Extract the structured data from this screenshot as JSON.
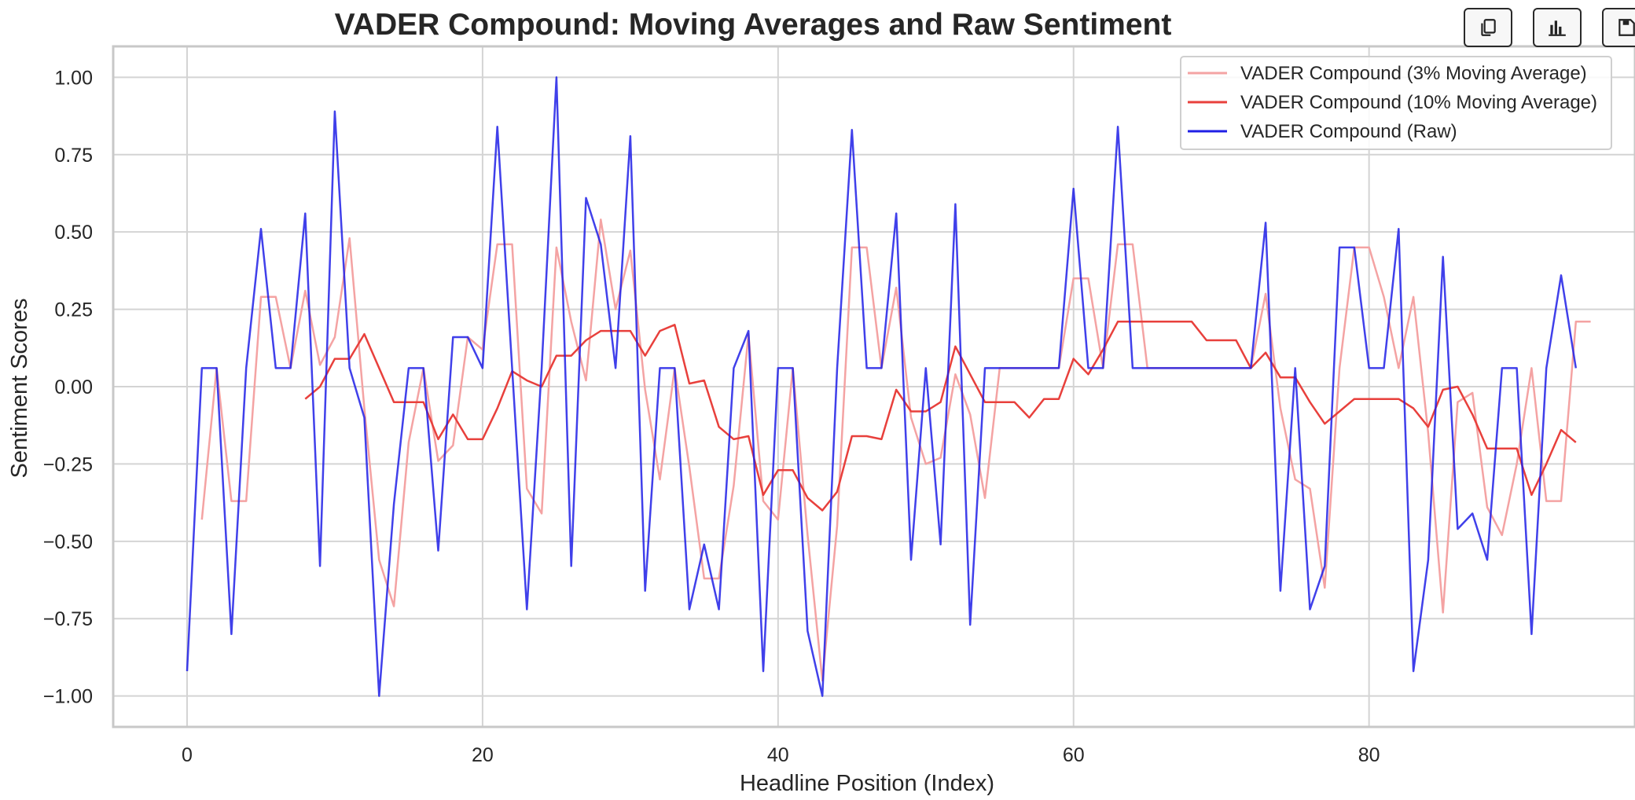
{
  "toolbar": {
    "buttons": [
      {
        "icon": "copy-icon"
      },
      {
        "icon": "bar-chart-icon"
      },
      {
        "icon": "save-icon"
      }
    ]
  },
  "colors": {
    "ma3": "#f4a3a3",
    "ma10": "#e8403c",
    "raw": "#1f1fe6",
    "grid": "#d4d4d4",
    "frame": "#c8c8c8",
    "text": "#262626"
  },
  "chart_data": {
    "type": "line",
    "title": "VADER Compound: Moving Averages and Raw Sentiment",
    "xlabel": "Headline Position (Index)",
    "ylabel": "Sentiment Scores",
    "xlim": [
      -5,
      98
    ],
    "ylim": [
      -1.1,
      1.1
    ],
    "xticks": [
      0,
      20,
      40,
      60,
      80
    ],
    "yticks": [
      1.0,
      0.75,
      0.5,
      0.25,
      0.0,
      -0.25,
      -0.5,
      -0.75,
      -1.0
    ],
    "ytick_labels": [
      "1.00",
      "0.75",
      "0.50",
      "0.25",
      "0.00",
      "−0.25",
      "−0.50",
      "−0.75",
      "−1.00"
    ],
    "xtick_labels": [
      "0",
      "20",
      "40",
      "60",
      "80"
    ],
    "grid": true,
    "legend_position": "top-right",
    "series": [
      {
        "name": "VADER Compound (3% Moving Average)",
        "x_start": 1,
        "values": [
          -0.43,
          0.06,
          -0.37,
          -0.37,
          0.29,
          0.29,
          0.06,
          0.31,
          0.07,
          0.16,
          0.48,
          -0.07,
          -0.56,
          -0.71,
          -0.18,
          0.06,
          -0.24,
          -0.19,
          0.16,
          0.12,
          0.46,
          0.46,
          -0.33,
          -0.41,
          0.45,
          0.21,
          0.02,
          0.54,
          0.25,
          0.44,
          -0.01,
          -0.3,
          0.06,
          -0.26,
          -0.62,
          -0.62,
          -0.32,
          0.17,
          -0.37,
          -0.43,
          0.06,
          -0.48,
          -0.95,
          -0.45,
          0.45,
          0.45,
          0.06,
          0.32,
          -0.1,
          -0.25,
          -0.23,
          0.04,
          -0.09,
          -0.36,
          0.06,
          0.06,
          0.06,
          0.06,
          0.06,
          0.35,
          0.35,
          0.06,
          0.46,
          0.46,
          0.06,
          0.06,
          0.06,
          0.06,
          0.06,
          0.06,
          0.06,
          0.06,
          0.3,
          -0.07,
          -0.3,
          -0.33,
          -0.65,
          0.06,
          0.45,
          0.45,
          0.29,
          0.06,
          0.29,
          -0.15,
          -0.73,
          -0.05,
          -0.02,
          -0.39,
          -0.48,
          -0.25,
          0.06,
          -0.37,
          -0.37,
          0.21,
          0.21
        ]
      },
      {
        "name": "VADER Compound (10% Moving Average)",
        "x_start": 8,
        "values": [
          -0.04,
          0.0,
          0.09,
          0.09,
          0.17,
          0.06,
          -0.05,
          -0.05,
          -0.05,
          -0.17,
          -0.09,
          -0.17,
          -0.17,
          -0.07,
          0.05,
          0.02,
          0.0,
          0.1,
          0.1,
          0.15,
          0.18,
          0.18,
          0.18,
          0.1,
          0.18,
          0.2,
          0.01,
          0.02,
          -0.13,
          -0.17,
          -0.16,
          -0.35,
          -0.27,
          -0.27,
          -0.36,
          -0.4,
          -0.34,
          -0.16,
          -0.16,
          -0.17,
          -0.01,
          -0.08,
          -0.08,
          -0.05,
          0.13,
          0.04,
          -0.05,
          -0.05,
          -0.05,
          -0.1,
          -0.04,
          -0.04,
          0.09,
          0.04,
          0.12,
          0.21,
          0.21,
          0.21,
          0.21,
          0.21,
          0.21,
          0.15,
          0.15,
          0.15,
          0.06,
          0.11,
          0.03,
          0.03,
          -0.05,
          -0.12,
          -0.08,
          -0.04,
          -0.04,
          -0.04,
          -0.04,
          -0.07,
          -0.13,
          -0.01,
          0.0,
          -0.09,
          -0.2,
          -0.2,
          -0.2,
          -0.35,
          -0.25,
          -0.14,
          -0.18
        ]
      },
      {
        "name": "VADER Compound (Raw)",
        "x_start": 0,
        "values": [
          -0.92,
          0.06,
          0.06,
          -0.8,
          0.06,
          0.51,
          0.06,
          0.06,
          0.56,
          -0.58,
          0.89,
          0.06,
          -0.1,
          -1.0,
          -0.38,
          0.06,
          0.06,
          -0.53,
          0.16,
          0.16,
          0.06,
          0.84,
          0.06,
          -0.72,
          0.06,
          1.0,
          -0.58,
          0.61,
          0.46,
          0.06,
          0.81,
          -0.66,
          0.06,
          0.06,
          -0.72,
          -0.51,
          -0.72,
          0.06,
          0.18,
          -0.92,
          0.06,
          0.06,
          -0.79,
          -1.0,
          0.06,
          0.83,
          0.06,
          0.06,
          0.56,
          -0.56,
          0.06,
          -0.51,
          0.59,
          -0.77,
          0.06,
          0.06,
          0.06,
          0.06,
          0.06,
          0.06,
          0.64,
          0.06,
          0.06,
          0.84,
          0.06,
          0.06,
          0.06,
          0.06,
          0.06,
          0.06,
          0.06,
          0.06,
          0.06,
          0.53,
          -0.66,
          0.06,
          -0.72,
          -0.58,
          0.45,
          0.45,
          0.06,
          0.06,
          0.51,
          -0.92,
          -0.56,
          0.42,
          -0.46,
          -0.41,
          -0.56,
          0.06,
          0.06,
          -0.8,
          0.06,
          0.36,
          0.06
        ]
      }
    ]
  }
}
